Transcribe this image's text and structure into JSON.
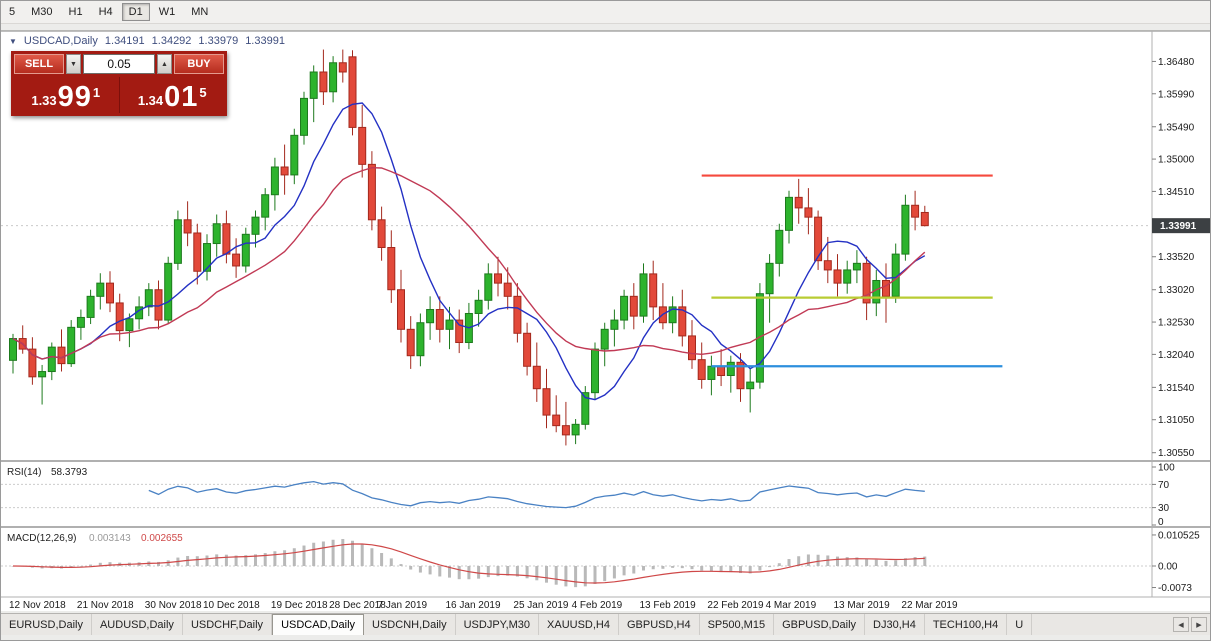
{
  "toolbar": {
    "timeframes": [
      "5",
      "M30",
      "H1",
      "H4",
      "D1",
      "W1",
      "MN"
    ],
    "active": "D1"
  },
  "icons": {
    "symbol_triangle": "▼",
    "caret_down": "▼",
    "caret_up": "▲",
    "tab_scroll_left": "◀",
    "tab_scroll_right": "▶"
  },
  "chart": {
    "symbol_header": "USDCAD,Daily",
    "ohlc": {
      "open": "1.34191",
      "high": "1.34292",
      "low": "1.33979",
      "close": "1.33991"
    },
    "current_price": "1.33991",
    "price_scale": [
      "1.36480",
      "1.35990",
      "1.35490",
      "1.35000",
      "1.34510",
      "1.34010",
      "1.33520",
      "1.33020",
      "1.32530",
      "1.32040",
      "1.31540",
      "1.31050",
      "1.30550"
    ]
  },
  "trade_panel": {
    "sell_label": "SELL",
    "buy_label": "BUY",
    "volume": "0.05",
    "sell_price": {
      "figure": "1.33",
      "pips": "99",
      "point": "1"
    },
    "buy_price": {
      "figure": "1.34",
      "pips": "01",
      "point": "5"
    }
  },
  "rsi": {
    "title": "RSI(14)",
    "value": "58.3793",
    "levels": [
      "100",
      "70",
      "30",
      "0"
    ]
  },
  "macd": {
    "title": "MACD(12,26,9)",
    "main_value": "0.003143",
    "signal_value": "0.002655",
    "scale": [
      "0.010525",
      "0.00",
      "-0.0073"
    ]
  },
  "date_axis": [
    {
      "label": "12 Nov 2018",
      "index": 0
    },
    {
      "label": "21 Nov 2018",
      "index": 7
    },
    {
      "label": "30 Nov 2018",
      "index": 14
    },
    {
      "label": "10 Dec 2018",
      "index": 20
    },
    {
      "label": "19 Dec 2018",
      "index": 27
    },
    {
      "label": "28 Dec 2018",
      "index": 33
    },
    {
      "label": "7 Jan 2019",
      "index": 38
    },
    {
      "label": "16 Jan 2019",
      "index": 45
    },
    {
      "label": "25 Jan 2019",
      "index": 52
    },
    {
      "label": "4 Feb 2019",
      "index": 58
    },
    {
      "label": "13 Feb 2019",
      "index": 65
    },
    {
      "label": "22 Feb 2019",
      "index": 72
    },
    {
      "label": "4 Mar 2019",
      "index": 78
    },
    {
      "label": "13 Mar 2019",
      "index": 85
    },
    {
      "label": "22 Mar 2019",
      "index": 92
    }
  ],
  "tabs": {
    "items": [
      {
        "label": "EURUSD,Daily",
        "active": false
      },
      {
        "label": "AUDUSD,Daily",
        "active": false
      },
      {
        "label": "USDCHF,Daily",
        "active": false
      },
      {
        "label": "USDCAD,Daily",
        "active": true
      },
      {
        "label": "USDCNH,Daily",
        "active": false
      },
      {
        "label": "USDJPY,M30",
        "active": false
      },
      {
        "label": "XAUUSD,H4",
        "active": false
      },
      {
        "label": "GBPUSD,H4",
        "active": false
      },
      {
        "label": "SP500,M15",
        "active": false
      },
      {
        "label": "GBPUSD,Daily",
        "active": false
      },
      {
        "label": "DJ30,H4",
        "active": false
      },
      {
        "label": "TECH100,H4",
        "active": false
      },
      {
        "label": "U",
        "active": false
      }
    ]
  },
  "chart_data": {
    "type": "candlestick",
    "symbol": "USDCAD",
    "timeframe": "Daily",
    "price_axis_range": [
      1.305,
      1.3682
    ],
    "indicators": {
      "ma_fast_period": 8,
      "ma_slow_period": 18,
      "rsi_period": 14,
      "macd_fast": 12,
      "macd_slow": 26,
      "macd_signal": 9
    },
    "colors": {
      "up": "#2db32d",
      "up_border": "#1d7a1d",
      "down": "#e2493a",
      "down_border": "#a3291d",
      "ma_fast": "#2431c4",
      "ma_slow": "#c13a55",
      "rsi": "#4a82c4",
      "macd_bar": "#b9b9b9",
      "macd_signal": "#cf4848",
      "badge_bg": "#3c4043",
      "hline_red": "#f5493d",
      "hline_yellow": "#b9cc33",
      "hline_blue": "#2d8fdd"
    },
    "hlines": [
      {
        "price": 1.3475,
        "start_index": 71,
        "end_index": 101,
        "color": "#f5493d"
      },
      {
        "price": 1.329,
        "start_index": 72,
        "end_index": 101,
        "color": "#b9cc33"
      },
      {
        "price": 1.3186,
        "start_index": 72,
        "end_index": 102,
        "color": "#2d8fdd"
      }
    ],
    "candles": [
      [
        1.3195,
        1.3235,
        1.3175,
        1.3228
      ],
      [
        1.3228,
        1.3248,
        1.3205,
        1.3212
      ],
      [
        1.3212,
        1.323,
        1.3158,
        1.317
      ],
      [
        1.317,
        1.3188,
        1.3128,
        1.3178
      ],
      [
        1.3178,
        1.3222,
        1.3165,
        1.3215
      ],
      [
        1.3215,
        1.3242,
        1.3178,
        1.319
      ],
      [
        1.319,
        1.3256,
        1.3185,
        1.3245
      ],
      [
        1.3245,
        1.3272,
        1.3226,
        1.326
      ],
      [
        1.326,
        1.3302,
        1.325,
        1.3292
      ],
      [
        1.3292,
        1.3327,
        1.3272,
        1.3312
      ],
      [
        1.3312,
        1.333,
        1.3268,
        1.3282
      ],
      [
        1.3282,
        1.3296,
        1.3224,
        1.324
      ],
      [
        1.324,
        1.3266,
        1.3215,
        1.3258
      ],
      [
        1.3258,
        1.3292,
        1.3242,
        1.3276
      ],
      [
        1.3276,
        1.3312,
        1.3262,
        1.3302
      ],
      [
        1.3302,
        1.3316,
        1.3242,
        1.3256
      ],
      [
        1.3256,
        1.3352,
        1.325,
        1.3342
      ],
      [
        1.3342,
        1.3422,
        1.3332,
        1.3408
      ],
      [
        1.3408,
        1.3436,
        1.3368,
        1.3388
      ],
      [
        1.3388,
        1.3402,
        1.331,
        1.333
      ],
      [
        1.333,
        1.3386,
        1.3316,
        1.3372
      ],
      [
        1.3372,
        1.3416,
        1.3352,
        1.3402
      ],
      [
        1.3402,
        1.3422,
        1.3342,
        1.3356
      ],
      [
        1.3356,
        1.338,
        1.332,
        1.3338
      ],
      [
        1.3338,
        1.3396,
        1.3328,
        1.3386
      ],
      [
        1.3386,
        1.3422,
        1.3366,
        1.3412
      ],
      [
        1.3412,
        1.3456,
        1.3392,
        1.3446
      ],
      [
        1.3446,
        1.3502,
        1.3422,
        1.3488
      ],
      [
        1.3488,
        1.3522,
        1.3446,
        1.3476
      ],
      [
        1.3476,
        1.3546,
        1.3462,
        1.3536
      ],
      [
        1.3536,
        1.3602,
        1.3522,
        1.3592
      ],
      [
        1.3592,
        1.3642,
        1.3556,
        1.3632
      ],
      [
        1.3632,
        1.3666,
        1.3582,
        1.3602
      ],
      [
        1.3602,
        1.3656,
        1.3586,
        1.3646
      ],
      [
        1.3646,
        1.3666,
        1.3616,
        1.3632
      ],
      [
        1.3655,
        1.3665,
        1.3536,
        1.3548
      ],
      [
        1.3548,
        1.3582,
        1.3472,
        1.3492
      ],
      [
        1.3492,
        1.3512,
        1.3392,
        1.3408
      ],
      [
        1.3408,
        1.3428,
        1.3346,
        1.3366
      ],
      [
        1.3366,
        1.3392,
        1.3282,
        1.3302
      ],
      [
        1.3302,
        1.3332,
        1.3222,
        1.3242
      ],
      [
        1.3242,
        1.3262,
        1.3182,
        1.3202
      ],
      [
        1.3202,
        1.3266,
        1.3186,
        1.3252
      ],
      [
        1.3252,
        1.3292,
        1.3226,
        1.3272
      ],
      [
        1.3272,
        1.3292,
        1.3222,
        1.3242
      ],
      [
        1.3242,
        1.3276,
        1.3212,
        1.3256
      ],
      [
        1.3256,
        1.3272,
        1.3206,
        1.3222
      ],
      [
        1.3222,
        1.3282,
        1.3212,
        1.3266
      ],
      [
        1.3266,
        1.3302,
        1.3246,
        1.3286
      ],
      [
        1.3286,
        1.3342,
        1.3272,
        1.3326
      ],
      [
        1.3326,
        1.3352,
        1.3292,
        1.3312
      ],
      [
        1.3312,
        1.3336,
        1.3272,
        1.3292
      ],
      [
        1.3292,
        1.3312,
        1.3222,
        1.3236
      ],
      [
        1.3236,
        1.3252,
        1.3172,
        1.3186
      ],
      [
        1.3186,
        1.3222,
        1.3132,
        1.3152
      ],
      [
        1.3152,
        1.3182,
        1.3092,
        1.3112
      ],
      [
        1.3112,
        1.3142,
        1.3086,
        1.3096
      ],
      [
        1.3096,
        1.3132,
        1.3066,
        1.3082
      ],
      [
        1.3082,
        1.3106,
        1.3068,
        1.3098
      ],
      [
        1.3098,
        1.3156,
        1.309,
        1.3146
      ],
      [
        1.3146,
        1.3222,
        1.3136,
        1.3212
      ],
      [
        1.3212,
        1.3252,
        1.3186,
        1.3242
      ],
      [
        1.3242,
        1.3272,
        1.3216,
        1.3256
      ],
      [
        1.3256,
        1.3302,
        1.3242,
        1.3292
      ],
      [
        1.3292,
        1.3312,
        1.3242,
        1.3262
      ],
      [
        1.3262,
        1.3342,
        1.3252,
        1.3326
      ],
      [
        1.3326,
        1.3346,
        1.3256,
        1.3276
      ],
      [
        1.3276,
        1.3312,
        1.3242,
        1.3252
      ],
      [
        1.3252,
        1.3292,
        1.3236,
        1.3276
      ],
      [
        1.3276,
        1.3302,
        1.3216,
        1.3232
      ],
      [
        1.3232,
        1.3256,
        1.3182,
        1.3196
      ],
      [
        1.3196,
        1.3222,
        1.3152,
        1.3166
      ],
      [
        1.3166,
        1.3202,
        1.3142,
        1.3186
      ],
      [
        1.3186,
        1.3212,
        1.3156,
        1.3172
      ],
      [
        1.3172,
        1.3202,
        1.3146,
        1.3192
      ],
      [
        1.3192,
        1.3206,
        1.3132,
        1.3152
      ],
      [
        1.3152,
        1.3182,
        1.3116,
        1.3162
      ],
      [
        1.3162,
        1.3312,
        1.3152,
        1.3296
      ],
      [
        1.3296,
        1.3356,
        1.3252,
        1.3342
      ],
      [
        1.3342,
        1.3402,
        1.3322,
        1.3392
      ],
      [
        1.3392,
        1.3452,
        1.3372,
        1.3442
      ],
      [
        1.3442,
        1.347,
        1.3402,
        1.3426
      ],
      [
        1.3426,
        1.3456,
        1.3386,
        1.3412
      ],
      [
        1.3412,
        1.3422,
        1.3332,
        1.3346
      ],
      [
        1.3346,
        1.3382,
        1.3312,
        1.3332
      ],
      [
        1.3332,
        1.3356,
        1.3292,
        1.3312
      ],
      [
        1.3312,
        1.3346,
        1.3296,
        1.3332
      ],
      [
        1.3332,
        1.3362,
        1.3312,
        1.3342
      ],
      [
        1.3342,
        1.3352,
        1.3256,
        1.3282
      ],
      [
        1.3282,
        1.3332,
        1.3262,
        1.3316
      ],
      [
        1.3316,
        1.3342,
        1.3252,
        1.3292
      ],
      [
        1.3292,
        1.3372,
        1.3282,
        1.3356
      ],
      [
        1.3356,
        1.3446,
        1.3346,
        1.343
      ],
      [
        1.343,
        1.3452,
        1.3392,
        1.3412
      ],
      [
        1.34191,
        1.34292,
        1.33979,
        1.33991
      ]
    ]
  }
}
